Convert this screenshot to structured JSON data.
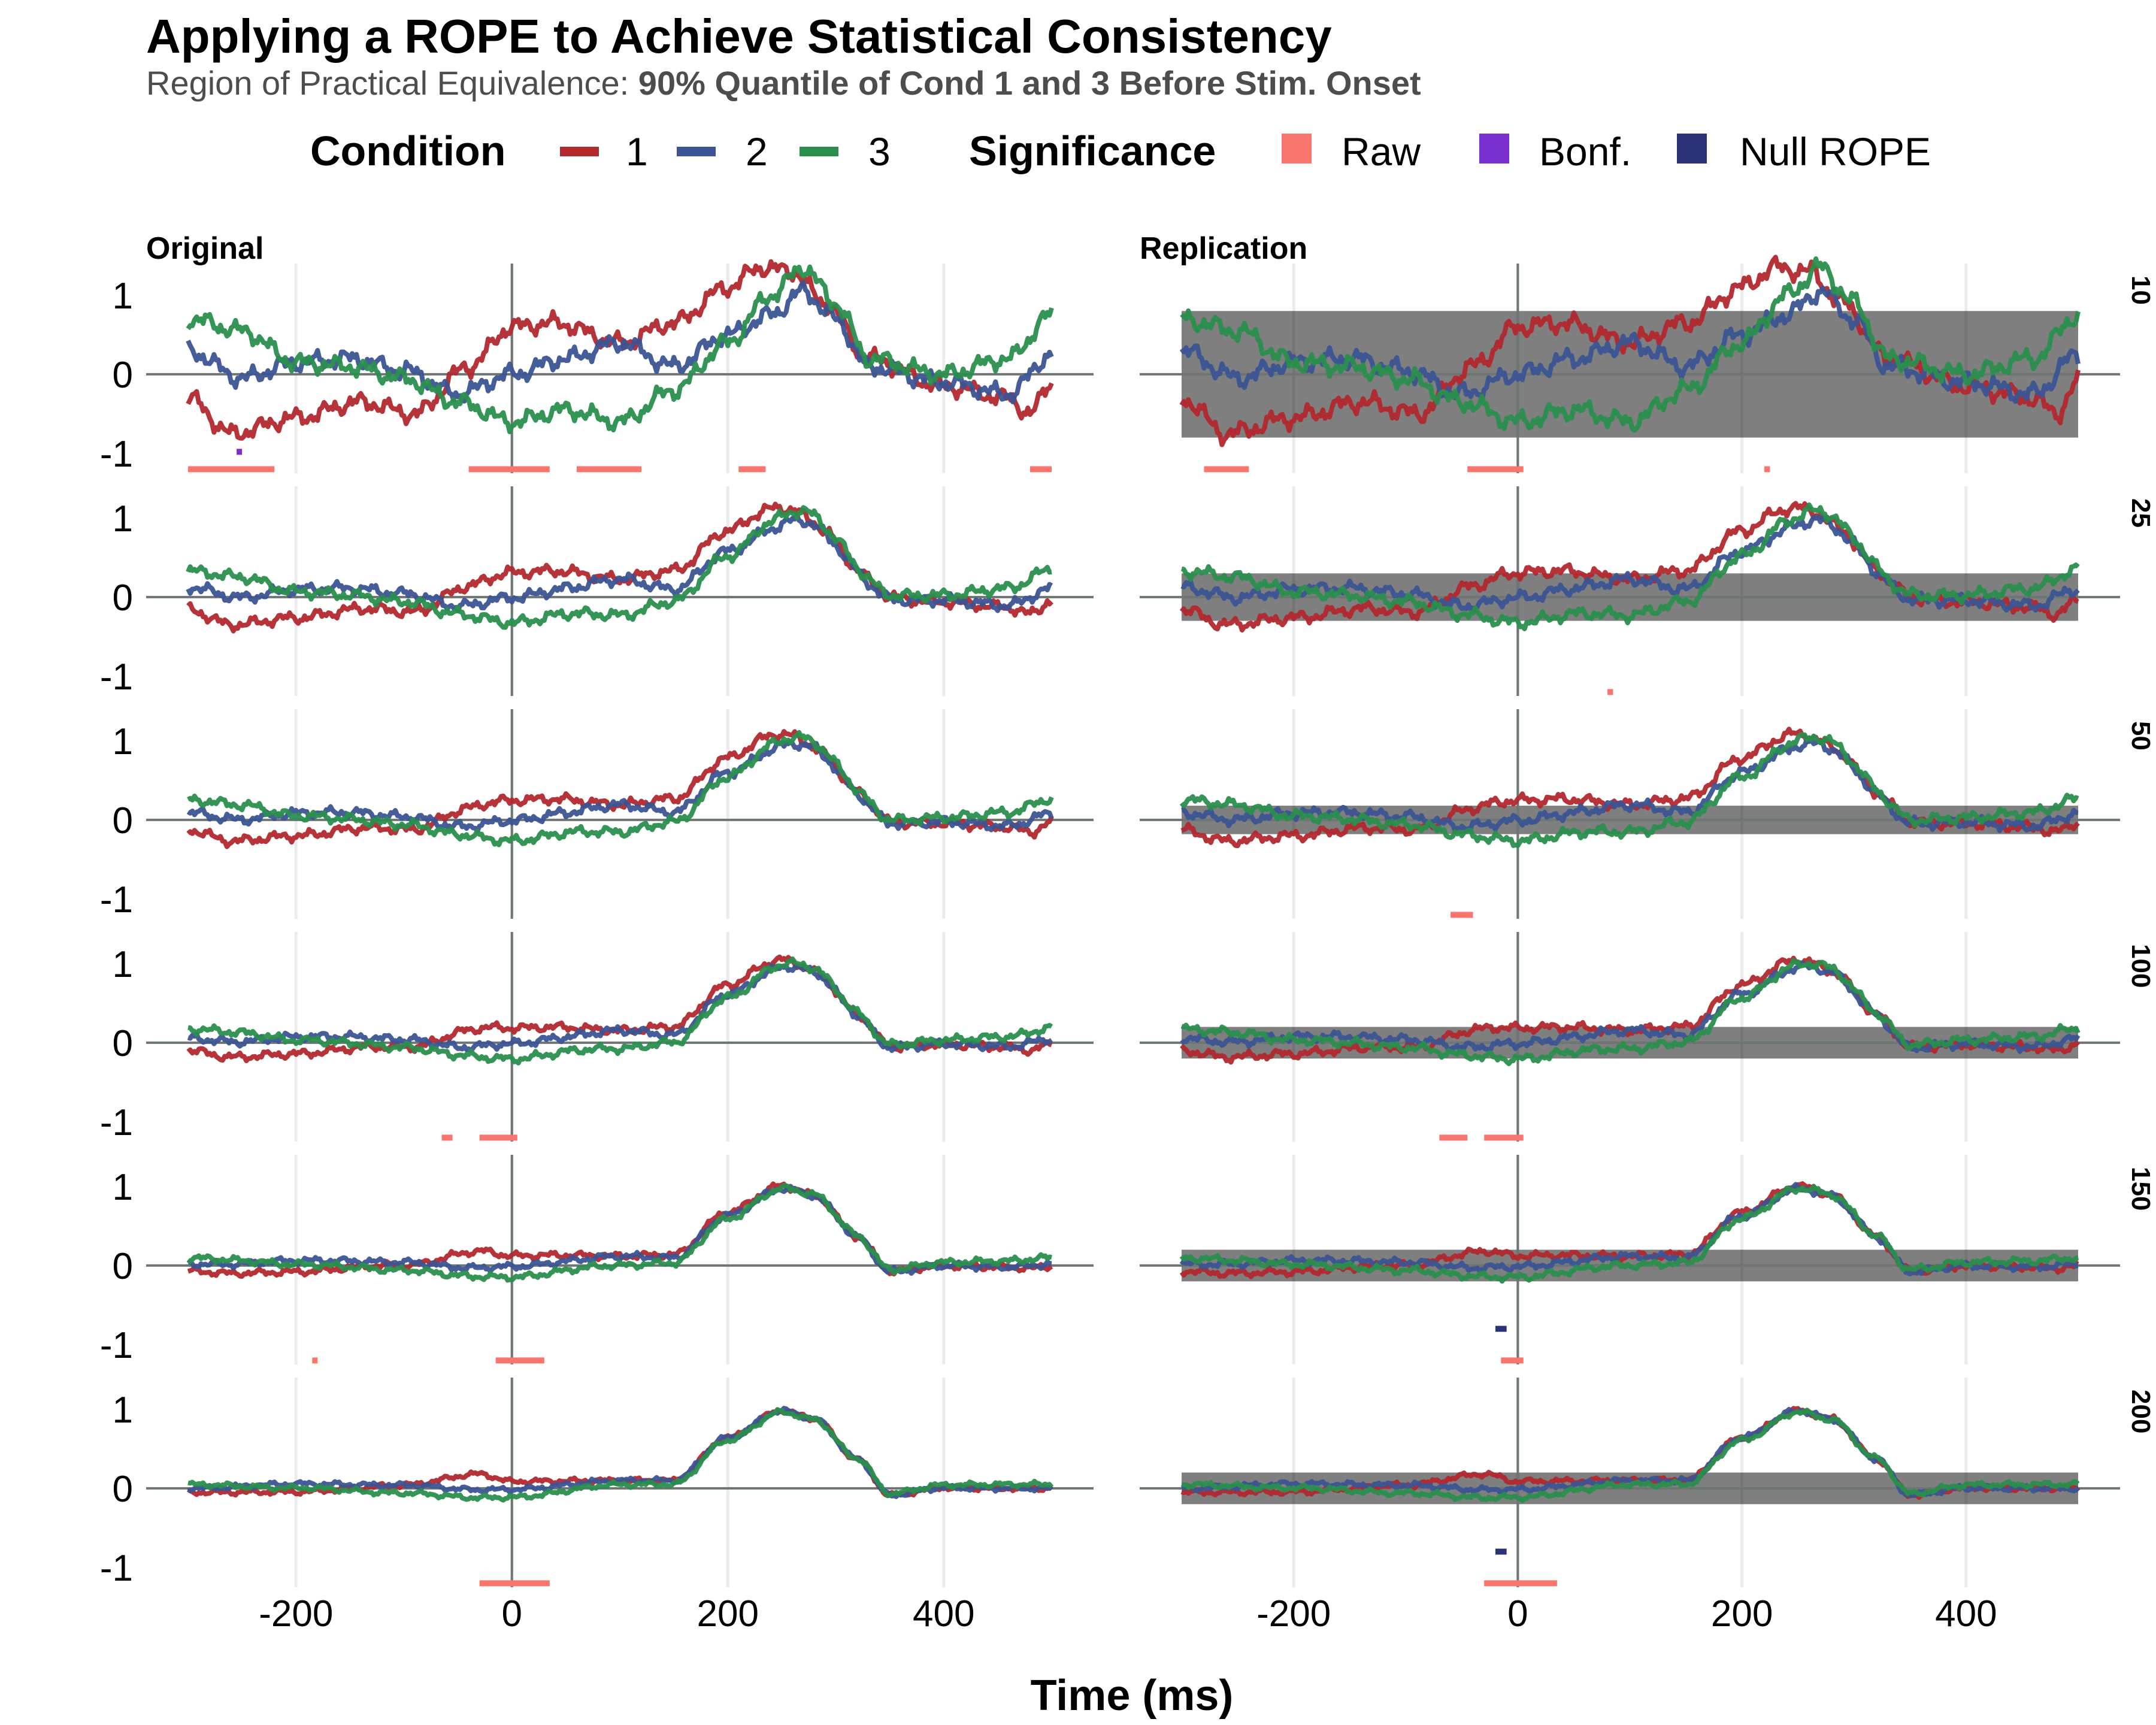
{
  "chart_data": {
    "type": "line",
    "title": "Applying a ROPE to Achieve Statistical Consistency",
    "subtitle_prefix": "Region of Practical Equivalence: ",
    "subtitle_bold": "90% Quantile of Cond 1 and 3 Before Stim. Onset",
    "xlabel": "Time (ms)",
    "ylabel": "",
    "xlim": [
      -300,
      500
    ],
    "ylim": [
      -1.25,
      1.4
    ],
    "x_ticks": [
      -200,
      0,
      200,
      400
    ],
    "x_tick_labels": [
      "-200",
      "0",
      "200",
      "400"
    ],
    "y_ticks": [
      -1,
      0,
      1
    ],
    "y_tick_labels": [
      "-1",
      "0",
      "1"
    ],
    "grid": "vertical-major",
    "legend_position": "top",
    "legend": {
      "condition_title": "Condition",
      "conditions": [
        {
          "label": "1",
          "color": "#b2292e"
        },
        {
          "label": "2",
          "color": "#3b5494"
        },
        {
          "label": "3",
          "color": "#2a8f4d"
        }
      ],
      "significance_title": "Significance",
      "significance": [
        {
          "label": "Raw",
          "color": "#f8766d"
        },
        {
          "label": "Bonf.",
          "color": "#7b2fd1"
        },
        {
          "label": "Null ROPE",
          "color": "#2b3278"
        }
      ]
    },
    "columns": [
      "Original",
      "Replication"
    ],
    "rows": [
      "10",
      "25",
      "50",
      "100",
      "150",
      "200"
    ],
    "series_knots": {
      "1": [
        [
          -300,
          -0.3
        ],
        [
          -260,
          -0.75
        ],
        [
          -200,
          -0.55
        ],
        [
          -140,
          -0.35
        ],
        [
          -90,
          -0.5
        ],
        [
          -40,
          0.1
        ],
        [
          0,
          0.6
        ],
        [
          40,
          0.65
        ],
        [
          100,
          0.4
        ],
        [
          150,
          0.65
        ],
        [
          200,
          1.1
        ],
        [
          230,
          1.35
        ],
        [
          260,
          1.3
        ],
        [
          290,
          0.9
        ],
        [
          330,
          0.2
        ],
        [
          400,
          -0.15
        ],
        [
          460,
          -0.3
        ],
        [
          480,
          -0.5
        ],
        [
          500,
          -0.1
        ]
      ],
      "2": [
        [
          -300,
          0.3
        ],
        [
          -250,
          -0.05
        ],
        [
          -200,
          0.15
        ],
        [
          -150,
          0.2
        ],
        [
          -100,
          0.05
        ],
        [
          -50,
          -0.25
        ],
        [
          0,
          0
        ],
        [
          50,
          0.2
        ],
        [
          100,
          0.4
        ],
        [
          150,
          0.1
        ],
        [
          200,
          0.5
        ],
        [
          240,
          0.75
        ],
        [
          270,
          1.05
        ],
        [
          300,
          0.7
        ],
        [
          330,
          0.1
        ],
        [
          400,
          -0.1
        ],
        [
          460,
          -0.25
        ],
        [
          500,
          0.25
        ]
      ],
      "3": [
        [
          -300,
          0.7
        ],
        [
          -250,
          0.55
        ],
        [
          -200,
          0.15
        ],
        [
          -150,
          0.1
        ],
        [
          -100,
          -0.05
        ],
        [
          -50,
          -0.35
        ],
        [
          0,
          -0.6
        ],
        [
          50,
          -0.45
        ],
        [
          100,
          -0.6
        ],
        [
          150,
          -0.2
        ],
        [
          200,
          0.4
        ],
        [
          240,
          1.0
        ],
        [
          270,
          1.35
        ],
        [
          300,
          0.9
        ],
        [
          330,
          0.2
        ],
        [
          400,
          0
        ],
        [
          460,
          0.2
        ],
        [
          500,
          0.75
        ]
      ]
    },
    "rope_halfwidth": {
      "10": 0.8,
      "25": 0.3,
      "50": 0.18,
      "100": 0.2,
      "150": 0.2,
      "200": 0.2
    },
    "significance_marks": {
      "Original": {
        "10": {
          "raw": [
            [
              -300,
              -220
            ],
            [
              -40,
              35
            ],
            [
              60,
              120
            ],
            [
              210,
              235
            ],
            [
              480,
              500
            ]
          ],
          "bonf": [
            [
              -255,
              -250
            ]
          ],
          "rope": []
        },
        "25": {
          "raw": [],
          "bonf": [],
          "rope": []
        },
        "50": {
          "raw": [],
          "bonf": [],
          "rope": []
        },
        "100": {
          "raw": [
            [
              -65,
              -55
            ],
            [
              -30,
              5
            ]
          ],
          "bonf": [],
          "rope": []
        },
        "150": {
          "raw": [
            [
              -185,
              -180
            ],
            [
              -15,
              30
            ]
          ],
          "bonf": [],
          "rope": []
        },
        "200": {
          "raw": [
            [
              -30,
              35
            ]
          ],
          "bonf": [],
          "rope": []
        }
      },
      "Replication": {
        "10": {
          "raw": [
            [
              -280,
              -240
            ],
            [
              -45,
              5
            ],
            [
              220,
              225
            ]
          ],
          "bonf": [],
          "rope": []
        },
        "25": {
          "raw": [
            [
              80,
              85
            ]
          ],
          "bonf": [],
          "rope": []
        },
        "50": {
          "raw": [
            [
              -60,
              -40
            ]
          ],
          "bonf": [],
          "rope": []
        },
        "100": {
          "raw": [
            [
              -70,
              -45
            ],
            [
              -30,
              5
            ]
          ],
          "bonf": [],
          "rope": []
        },
        "150": {
          "raw": [
            [
              -15,
              5
            ]
          ],
          "bonf": [],
          "rope": [
            [
              -20,
              -10
            ]
          ]
        },
        "200": {
          "raw": [
            [
              -30,
              35
            ]
          ],
          "bonf": [],
          "rope": [
            [
              -20,
              -10
            ]
          ]
        }
      }
    }
  }
}
